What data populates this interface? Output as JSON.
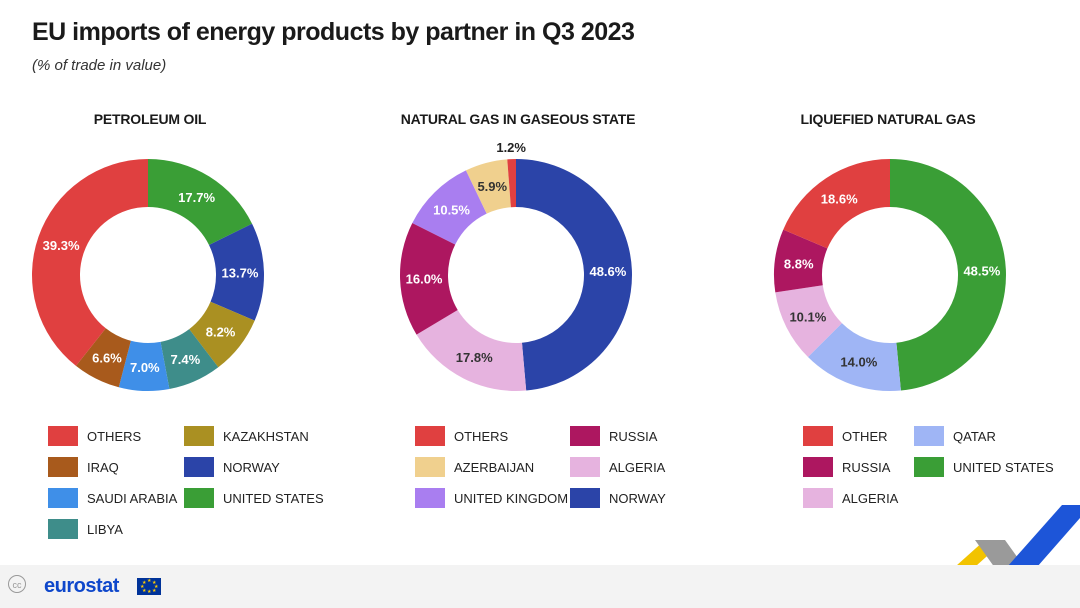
{
  "header": {
    "title": "EU imports of energy products by partner in Q3 2023",
    "subtitle": "(% of trade in value)"
  },
  "colors": {
    "OTHERS": "#e04040",
    "IRAQ": "#a85a1c",
    "SAUDI ARABIA": "#3f8fe8",
    "LIBYA": "#3e8d8a",
    "KAZAKHSTAN": "#aa9022",
    "NORWAY": "#2b44a8",
    "UNITED STATES": "#3a9e36",
    "RUSSIA": "#ad1760",
    "AZERBAIJAN": "#f0d08e",
    "UNITED KINGDOM": "#a97ef0",
    "ALGERIA": "#e6b3df",
    "QATAR": "#9fb5f5"
  },
  "chart_data": [
    {
      "type": "pie",
      "title": "PETROLEUM OIL",
      "labels": [
        "UNITED STATES",
        "NORWAY",
        "KAZAKHSTAN",
        "LIBYA",
        "SAUDI ARABIA",
        "IRAQ",
        "OTHERS"
      ],
      "values": [
        17.7,
        13.7,
        8.2,
        7.4,
        7.0,
        6.6,
        39.3
      ],
      "value_labels": [
        "17.7%",
        "13.7%",
        "8.2%",
        "7.4%",
        "7.0%",
        "6.6%",
        "39.3%"
      ],
      "legend": [
        "OTHERS",
        "IRAQ",
        "SAUDI ARABIA",
        "LIBYA",
        "KAZAKHSTAN",
        "NORWAY",
        "UNITED STATES"
      ]
    },
    {
      "type": "pie",
      "title": "NATURAL GAS IN GASEOUS STATE",
      "labels": [
        "NORWAY",
        "ALGERIA",
        "RUSSIA",
        "UNITED KINGDOM",
        "AZERBAIJAN",
        "OTHERS"
      ],
      "values": [
        48.6,
        17.8,
        16.0,
        10.5,
        5.9,
        1.2
      ],
      "value_labels": [
        "48.6%",
        "17.8%",
        "16.0%",
        "10.5%",
        "5.9%",
        "1.2%"
      ],
      "legend": [
        "OTHERS",
        "AZERBAIJAN",
        "UNITED KINGDOM",
        "RUSSIA",
        "ALGERIA",
        "NORWAY"
      ]
    },
    {
      "type": "pie",
      "title": "LIQUEFIED NATURAL GAS",
      "labels": [
        "UNITED STATES",
        "QATAR",
        "ALGERIA",
        "RUSSIA",
        "OTHER"
      ],
      "values": [
        48.5,
        14.0,
        10.1,
        8.8,
        18.6
      ],
      "value_labels": [
        "48.5%",
        "14.0%",
        "10.1%",
        "8.8%",
        "18.6%"
      ],
      "legend": [
        "OTHER",
        "RUSSIA",
        "ALGERIA",
        "QATAR",
        "UNITED STATES"
      ]
    }
  ],
  "footer": {
    "logo": "eurostat",
    "license_icon": "creative-commons-icon"
  }
}
